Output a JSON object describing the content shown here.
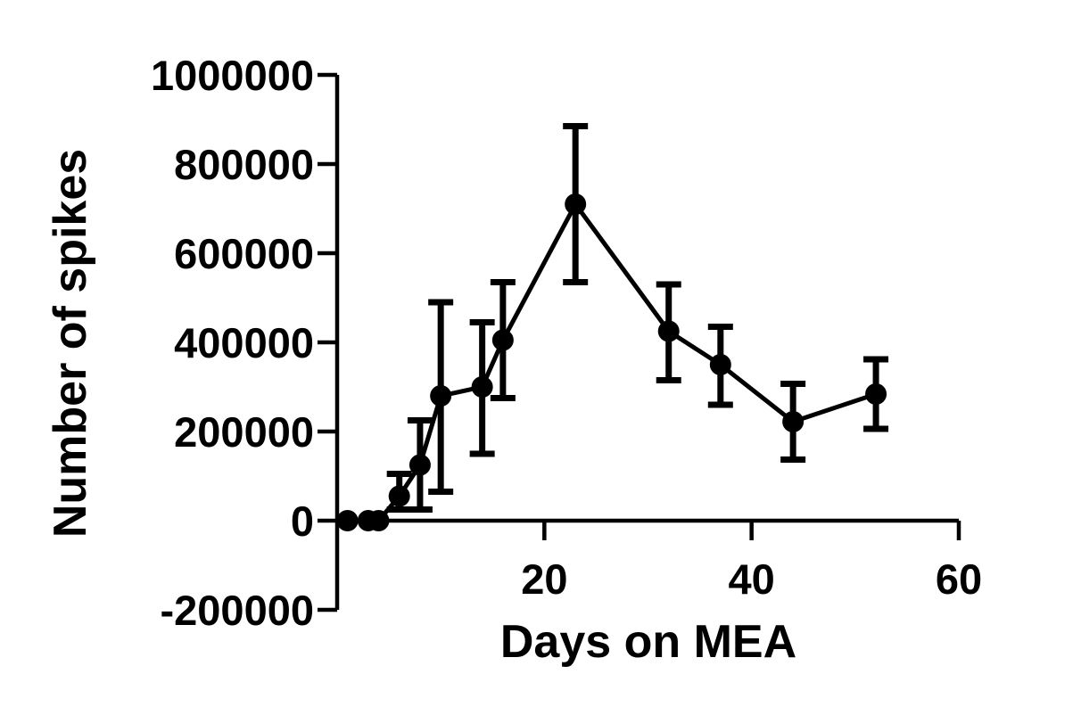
{
  "chart_data": {
    "type": "line",
    "xlabel": "Days on MEA",
    "ylabel": "Number of spikes",
    "xlim": [
      0,
      60
    ],
    "ylim": [
      -200000,
      1000000
    ],
    "x_ticks": [
      20,
      40,
      60
    ],
    "x_tick_labels": [
      "20",
      "40",
      "60"
    ],
    "y_ticks": [
      -200000,
      0,
      200000,
      400000,
      600000,
      800000,
      1000000
    ],
    "y_tick_labels": [
      "-200000",
      "0",
      "200000",
      "400000",
      "600000",
      "800000",
      "1000000"
    ],
    "grid": false,
    "series": [
      {
        "x": [
          1,
          3,
          4,
          6,
          8,
          10,
          14,
          16,
          23,
          32,
          37,
          44,
          52
        ],
        "y": [
          0,
          0,
          0,
          55000,
          125000,
          280000,
          300000,
          405000,
          710000,
          425000,
          350000,
          222000,
          284000
        ],
        "err_low": [
          0,
          0,
          0,
          30000,
          100000,
          215000,
          150000,
          130000,
          175000,
          110000,
          90000,
          85000,
          78000
        ],
        "err_high": [
          0,
          0,
          0,
          50000,
          100000,
          210000,
          145000,
          130000,
          175000,
          105000,
          85000,
          85000,
          78000
        ],
        "color": "#000000"
      }
    ]
  }
}
